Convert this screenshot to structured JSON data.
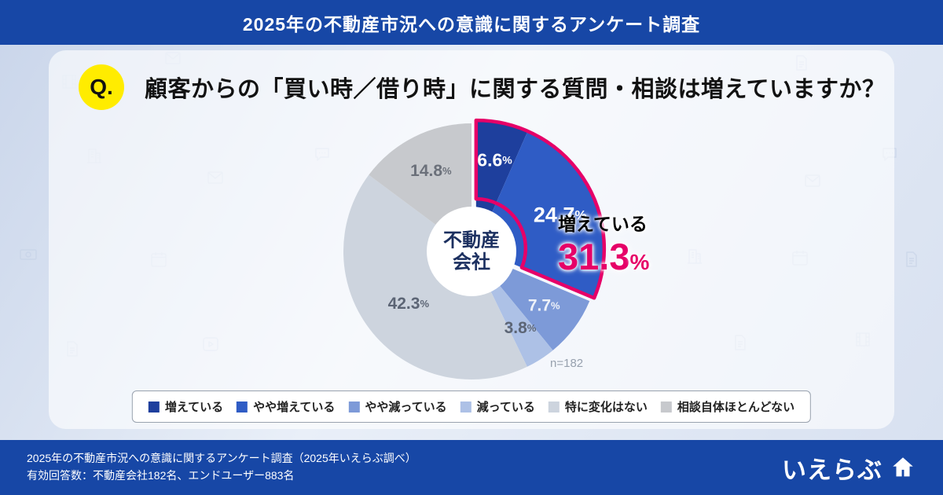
{
  "header": {
    "title": "2025年の不動産市況への意識に関するアンケート調査"
  },
  "question": {
    "badge": "Q.",
    "text": "顧客からの「買い時／借り時」に関する質問・相談は増えていますか？"
  },
  "chart_data": {
    "type": "pie",
    "donut": true,
    "center_label_lines": [
      "不動産",
      "会社"
    ],
    "n_label": "n=182",
    "unit": "%",
    "segments": [
      {
        "label": "増えている",
        "value": 6.6,
        "color": "#1e3f9d",
        "text_color": "#ffffff"
      },
      {
        "label": "やや増えている",
        "value": 24.7,
        "color": "#2f5cc5",
        "text_color": "#ffffff"
      },
      {
        "label": "やや減っている",
        "value": 7.7,
        "color": "#7d9ad8",
        "text_color": "#eef2f9"
      },
      {
        "label": "減っている",
        "value": 3.8,
        "color": "#adc1e6",
        "text_color": "#5c6575"
      },
      {
        "label": "特に変化はない",
        "value": 42.3,
        "color": "#cdd4de",
        "text_color": "#5c6575"
      },
      {
        "label": "相談自体ほとんどない",
        "value": 14.8,
        "color": "#c7c9cd",
        "text_color": "#6b707a"
      }
    ],
    "highlight": {
      "label": "増えている",
      "value": "31.3",
      "unit": "%",
      "segment_indexes": [
        0,
        1
      ],
      "color": "#e60068"
    }
  },
  "footer": {
    "line1": "2025年の不動産市況への意識に関するアンケート調査（2025年いえらぶ調べ）",
    "line2": "有効回答数：不動産会社182名、エンドユーザー883名",
    "logo_text": "いえらぶ"
  }
}
